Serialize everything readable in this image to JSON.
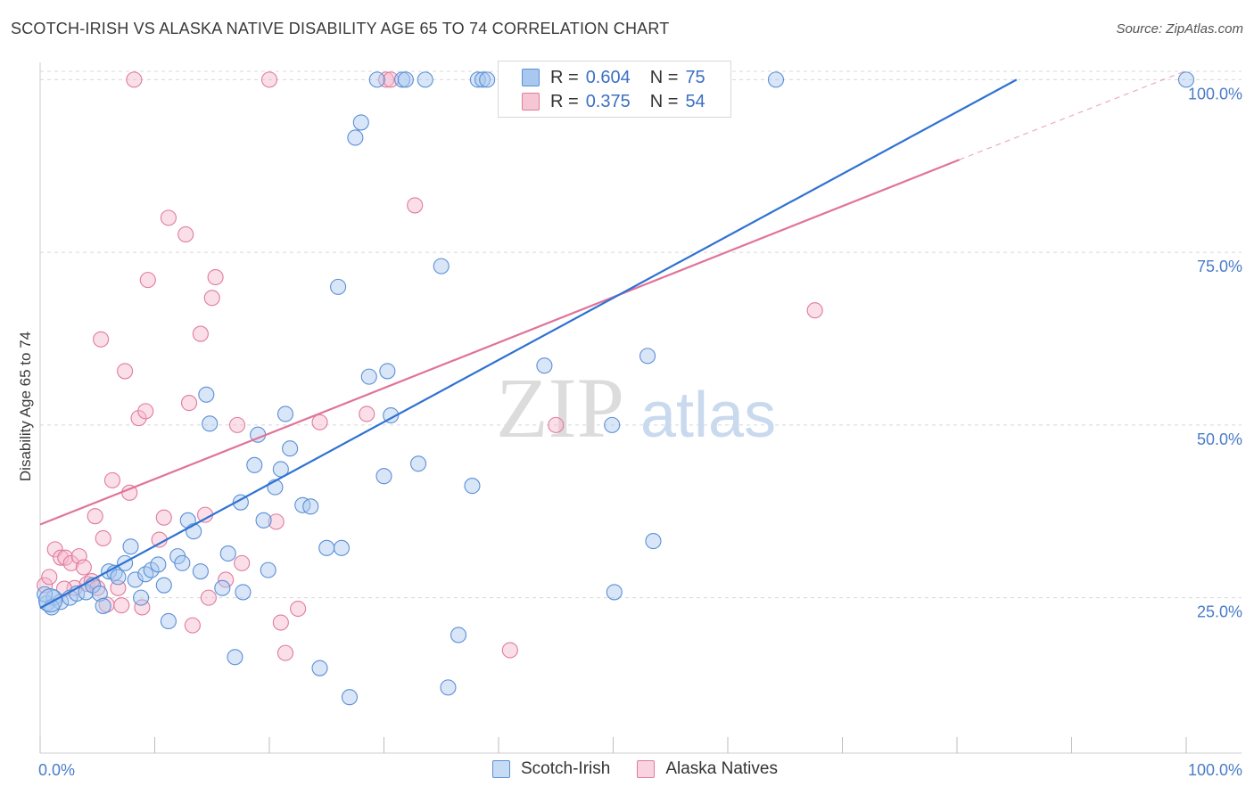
{
  "title": "SCOTCH-IRISH VS ALASKA NATIVE DISABILITY AGE 65 TO 74 CORRELATION CHART",
  "source": "Source: ZipAtlas.com",
  "watermark": {
    "zip": "ZIP",
    "atlas": "atlas"
  },
  "colors": {
    "blue_fill": "#a9c8f0",
    "blue_stroke": "#5b8fd6",
    "blue_line": "#2e72d2",
    "pink_fill": "#f6b8cb",
    "pink_stroke": "#e07b9c",
    "pink_line": "#e0739a",
    "tick_text": "#4a7cc9",
    "grid": "#d8d8d8"
  },
  "legend": {
    "rows": [
      {
        "r_label": "R =",
        "r_value": "0.604",
        "n_label": "N =",
        "n_value": "75",
        "series": "Scotch-Irish"
      },
      {
        "r_label": "R =",
        "r_value": "0.375",
        "n_label": "N =",
        "n_value": "54",
        "series": "Alaska Natives"
      }
    ]
  },
  "bottom_legend": [
    "Scotch-Irish",
    "Alaska Natives"
  ],
  "chart_data": {
    "type": "scatter",
    "title": "SCOTCH-IRISH VS ALASKA NATIVE DISABILITY AGE 65 TO 74 CORRELATION CHART",
    "xlabel": "",
    "ylabel": "Disability Age 65 to 74",
    "xlim": [
      0,
      100
    ],
    "ylim": [
      2.5,
      102.5
    ],
    "x_tick_labels": [
      "0.0%",
      "100.0%"
    ],
    "y_ticks": [
      25,
      50,
      75,
      100
    ],
    "y_tick_labels": [
      "25.0%",
      "50.0%",
      "75.0%",
      "100.0%"
    ],
    "grid": true,
    "legend_position": "top-center",
    "series": [
      {
        "name": "Scotch-Irish",
        "R": 0.604,
        "N": 75,
        "trend": {
          "x": [
            0,
            85.2
          ],
          "y": [
            23.5,
            100
          ]
        },
        "points": [
          [
            0.6,
            24.2
          ],
          [
            1.2,
            25.0
          ],
          [
            1.8,
            24.4
          ],
          [
            2.6,
            25.0
          ],
          [
            3.2,
            25.6
          ],
          [
            4.0,
            25.8
          ],
          [
            4.6,
            26.8
          ],
          [
            5.2,
            25.6
          ],
          [
            5.5,
            23.8
          ],
          [
            6.0,
            28.8
          ],
          [
            6.5,
            28.6
          ],
          [
            6.8,
            28.0
          ],
          [
            7.4,
            30.0
          ],
          [
            7.9,
            32.4
          ],
          [
            8.3,
            27.6
          ],
          [
            8.8,
            25.0
          ],
          [
            9.2,
            28.4
          ],
          [
            9.7,
            29.0
          ],
          [
            10.3,
            29.8
          ],
          [
            10.8,
            26.8
          ],
          [
            11.2,
            21.6
          ],
          [
            12.0,
            31.0
          ],
          [
            12.4,
            30.0
          ],
          [
            12.9,
            36.2
          ],
          [
            13.4,
            34.6
          ],
          [
            14.0,
            28.8
          ],
          [
            14.5,
            54.4
          ],
          [
            14.8,
            50.2
          ],
          [
            15.9,
            26.4
          ],
          [
            16.4,
            31.4
          ],
          [
            17.0,
            16.4
          ],
          [
            17.5,
            38.8
          ],
          [
            17.7,
            25.8
          ],
          [
            18.7,
            44.2
          ],
          [
            19.0,
            48.6
          ],
          [
            19.5,
            36.2
          ],
          [
            19.9,
            29.0
          ],
          [
            20.5,
            41.0
          ],
          [
            21.0,
            43.6
          ],
          [
            21.4,
            51.6
          ],
          [
            21.8,
            46.6
          ],
          [
            22.9,
            38.4
          ],
          [
            23.6,
            38.2
          ],
          [
            24.4,
            14.8
          ],
          [
            25.0,
            32.2
          ],
          [
            26.0,
            70.0
          ],
          [
            26.3,
            32.2
          ],
          [
            27.0,
            10.6
          ],
          [
            27.5,
            91.6
          ],
          [
            28.0,
            93.8
          ],
          [
            28.7,
            57.0
          ],
          [
            29.4,
            100
          ],
          [
            30.0,
            42.6
          ],
          [
            30.3,
            57.8
          ],
          [
            30.6,
            51.4
          ],
          [
            31.6,
            100
          ],
          [
            31.9,
            100
          ],
          [
            33.0,
            44.4
          ],
          [
            33.6,
            100
          ],
          [
            35.0,
            73.0
          ],
          [
            35.6,
            12.0
          ],
          [
            36.5,
            19.6
          ],
          [
            37.7,
            41.2
          ],
          [
            38.2,
            100
          ],
          [
            38.6,
            100
          ],
          [
            39.0,
            100
          ],
          [
            44.0,
            58.6
          ],
          [
            49.9,
            50.0
          ],
          [
            50.1,
            25.8
          ],
          [
            53.0,
            60.0
          ],
          [
            53.5,
            33.2
          ],
          [
            64.2,
            100
          ],
          [
            100,
            100
          ],
          [
            0.4,
            25.5
          ],
          [
            1.0,
            23.6
          ]
        ]
      },
      {
        "name": "Alaska Natives",
        "R": 0.375,
        "N": 54,
        "trend": {
          "x": [
            0,
            80.2
          ],
          "y": [
            35.6,
            88.4
          ]
        },
        "trend_dashed": {
          "x": [
            80.2,
            100
          ],
          "y": [
            88.4,
            101.3
          ]
        },
        "points": [
          [
            0.4,
            26.8
          ],
          [
            0.8,
            28.0
          ],
          [
            1.3,
            32.0
          ],
          [
            1.8,
            30.8
          ],
          [
            2.2,
            30.8
          ],
          [
            2.7,
            30.0
          ],
          [
            3.0,
            26.4
          ],
          [
            3.4,
            31.0
          ],
          [
            3.8,
            29.4
          ],
          [
            4.1,
            27.0
          ],
          [
            4.5,
            27.4
          ],
          [
            4.8,
            36.8
          ],
          [
            5.0,
            26.4
          ],
          [
            5.3,
            62.4
          ],
          [
            5.5,
            33.6
          ],
          [
            5.8,
            24.0
          ],
          [
            6.3,
            42.0
          ],
          [
            6.8,
            26.4
          ],
          [
            7.4,
            57.8
          ],
          [
            7.8,
            40.2
          ],
          [
            8.2,
            100
          ],
          [
            8.6,
            51.0
          ],
          [
            8.9,
            23.6
          ],
          [
            9.2,
            52.0
          ],
          [
            9.4,
            71.0
          ],
          [
            10.4,
            33.4
          ],
          [
            10.8,
            36.6
          ],
          [
            11.2,
            80.0
          ],
          [
            12.7,
            77.6
          ],
          [
            13.0,
            53.2
          ],
          [
            13.3,
            21.0
          ],
          [
            14.0,
            63.2
          ],
          [
            14.4,
            37.0
          ],
          [
            14.7,
            25.0
          ],
          [
            15.0,
            68.4
          ],
          [
            15.3,
            71.4
          ],
          [
            16.2,
            27.6
          ],
          [
            17.2,
            50.0
          ],
          [
            17.6,
            30.0
          ],
          [
            20.0,
            100
          ],
          [
            20.6,
            36.0
          ],
          [
            21.0,
            21.4
          ],
          [
            21.4,
            17.0
          ],
          [
            22.5,
            23.4
          ],
          [
            24.4,
            50.4
          ],
          [
            28.5,
            51.6
          ],
          [
            30.2,
            100
          ],
          [
            30.6,
            100
          ],
          [
            32.7,
            81.8
          ],
          [
            41.0,
            17.4
          ],
          [
            45.0,
            50.0
          ],
          [
            67.6,
            66.6
          ],
          [
            2.1,
            26.3
          ],
          [
            7.1,
            23.9
          ]
        ]
      }
    ]
  }
}
